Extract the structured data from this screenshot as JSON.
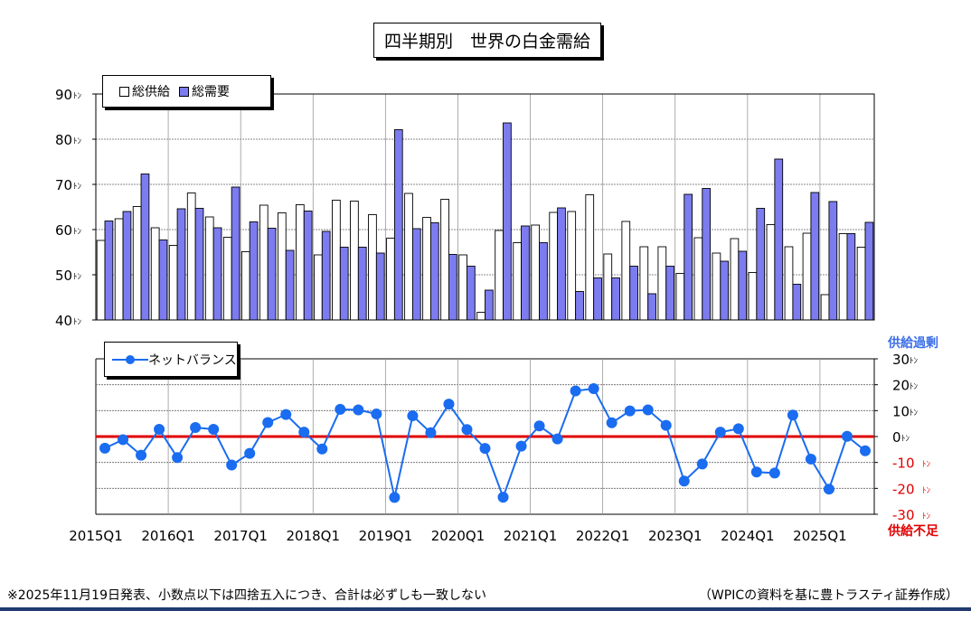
{
  "title": "四半期別　世界の白金需給",
  "legend_top": {
    "supply": "総供給",
    "demand": "総需要"
  },
  "legend_bottom": {
    "net": "ネットバランス"
  },
  "right_axis": {
    "surplus": "供給過剰",
    "deficit": "供給不足"
  },
  "footer": {
    "note": "※2025年11月19日発表、小数点以下は四捨五入につき、合計は必ずしも一致しない",
    "source": "（WPICの資料を基に豊トラスティ証券作成）"
  },
  "colors": {
    "demand": "#7c7cf0",
    "supply": "#ffffff",
    "net": "#1a6cf0",
    "zero": "#e00000",
    "surplus_label": "#3a6ee8",
    "deficit_label": "#e00000"
  },
  "chart_data": [
    {
      "type": "bar",
      "unit": "ﾄﾝ",
      "ylim": [
        40,
        90
      ],
      "yticks": [
        40,
        50,
        60,
        70,
        80,
        90
      ],
      "x_labels": [
        "2015Q1",
        "2016Q1",
        "2017Q1",
        "2018Q1",
        "2019Q1",
        "2020Q1",
        "2021Q1",
        "2022Q1",
        "2023Q1",
        "2024Q1",
        "2025Q1"
      ],
      "series": [
        {
          "name": "総供給",
          "values": [
            57.6,
            62.4,
            65.1,
            60.4,
            56.5,
            68.1,
            62.8,
            58.3,
            55.1,
            65.4,
            63.7,
            65.5,
            54.4,
            66.5,
            66.3,
            63.3,
            58.1,
            68.0,
            62.7,
            66.7,
            54.4,
            41.7,
            59.8,
            57.1,
            61.0,
            63.8,
            64.0,
            67.7,
            54.6,
            61.8,
            56.2,
            56.2,
            50.3,
            58.2,
            54.8,
            58.0,
            50.5,
            61.1,
            56.2,
            59.2,
            45.6,
            59.1,
            56.1
          ]
        },
        {
          "name": "総需要",
          "values": [
            61.9,
            64.0,
            72.3,
            57.7,
            64.6,
            64.7,
            60.4,
            69.4,
            61.7,
            60.3,
            55.4,
            64.1,
            59.6,
            56.1,
            56.1,
            54.8,
            82.1,
            60.2,
            61.5,
            54.5,
            51.9,
            46.6,
            83.6,
            60.8,
            57.1,
            64.8,
            46.3,
            49.3,
            49.3,
            51.9,
            45.8,
            51.9,
            67.8,
            69.1,
            53.0,
            55.2,
            64.7,
            75.6,
            47.9,
            68.2,
            66.2,
            59.1,
            61.6
          ]
        }
      ]
    },
    {
      "type": "line",
      "ylim": [
        -30,
        30
      ],
      "yticks": [
        30,
        20,
        10,
        0,
        -10,
        -20,
        -30
      ],
      "ytick_labels": [
        "30ﾄﾝ",
        "20ﾄﾝ",
        "10ﾄﾝ",
        "0ﾄﾝ",
        "-10 ﾄﾝ",
        "-20 ﾄﾝ",
        "-30 ﾄﾝ"
      ],
      "series": [
        {
          "name": "ネットバランス",
          "values": [
            -4.5,
            -1.2,
            -7.2,
            2.8,
            -8.1,
            3.5,
            2.8,
            -11.0,
            -6.5,
            5.4,
            8.5,
            1.7,
            -4.8,
            10.5,
            10.3,
            8.7,
            -23.5,
            8.0,
            1.5,
            12.5,
            2.7,
            -4.6,
            -23.4,
            -3.7,
            4.1,
            -0.9,
            17.6,
            18.5,
            5.3,
            9.9,
            10.3,
            4.3,
            -17.2,
            -10.6,
            1.7,
            3.0,
            -13.7,
            -14.1,
            8.3,
            -8.7,
            -20.3,
            0.1,
            -5.5
          ]
        }
      ]
    }
  ]
}
